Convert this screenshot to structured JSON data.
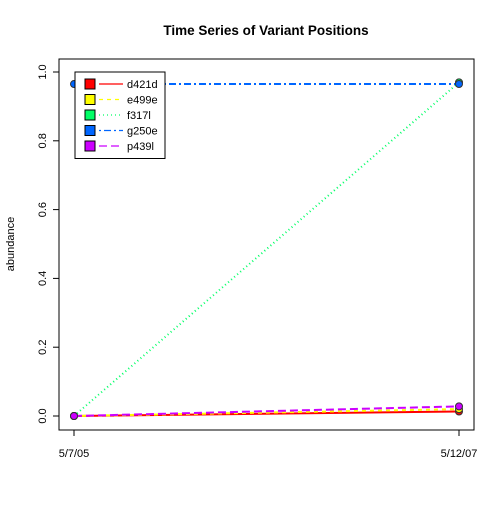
{
  "chart_data": {
    "type": "line",
    "title": "Time Series of Variant Positions",
    "xlabel": "",
    "ylabel": "abundance",
    "x_categories": [
      "5/7/05",
      "5/12/07"
    ],
    "ylim": [
      0,
      1
    ],
    "yticks": [
      0.0,
      0.2,
      0.4,
      0.6,
      0.8,
      1.0
    ],
    "ytick_labels": [
      "0.0",
      "0.2",
      "0.4",
      "0.6",
      "0.8",
      "1.0"
    ],
    "grid": false,
    "legend_position": "top-left",
    "series": [
      {
        "name": "d421d",
        "color": "#ff0000",
        "dash": "solid",
        "values": [
          0.0,
          0.013
        ]
      },
      {
        "name": "e499e",
        "color": "#ffff00",
        "dash": "dashed",
        "values": [
          0.0,
          0.02
        ]
      },
      {
        "name": "f317l",
        "color": "#00ff66",
        "dash": "dotted",
        "values": [
          0.0,
          0.97
        ]
      },
      {
        "name": "g250e",
        "color": "#0066ff",
        "dash": "dotdash",
        "values": [
          0.965,
          0.965
        ]
      },
      {
        "name": "p439l",
        "color": "#cc00ff",
        "dash": "longdash",
        "values": [
          0.0,
          0.028
        ]
      }
    ]
  }
}
